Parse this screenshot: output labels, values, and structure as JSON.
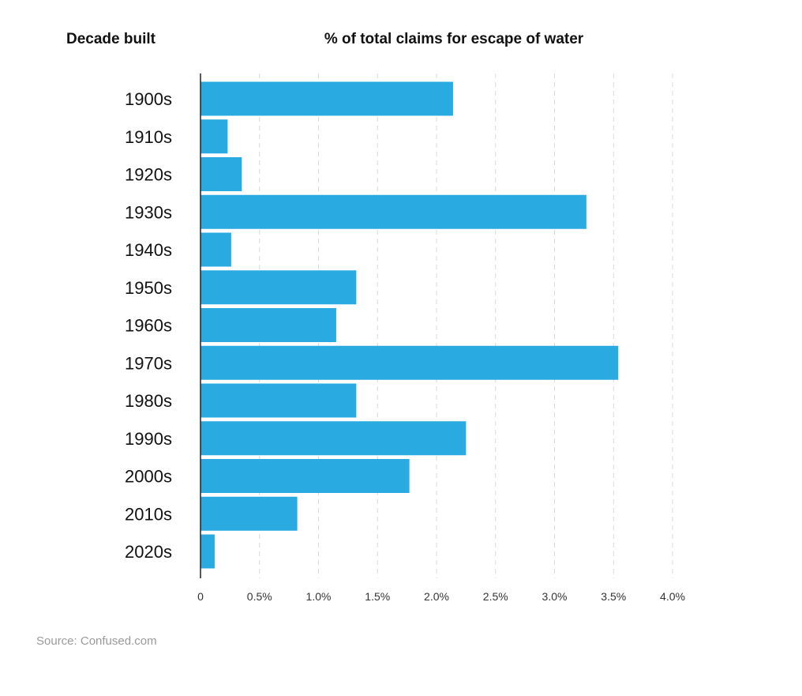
{
  "header": {
    "category_heading": "Decade built",
    "value_heading": "% of total claims for escape of water"
  },
  "source": "Source: Confused.com",
  "colors": {
    "bar": "#29abe2",
    "grid": "#d9d9d9",
    "axis": "#222222"
  },
  "chart_data": {
    "type": "bar",
    "orientation": "horizontal",
    "title": "% of total claims for escape of water",
    "ylabel": "Decade built",
    "xlabel": "",
    "categories": [
      "1900s",
      "1910s",
      "1920s",
      "1930s",
      "1940s",
      "1950s",
      "1960s",
      "1970s",
      "1980s",
      "1990s",
      "2000s",
      "2010s",
      "2020s"
    ],
    "values": [
      2.14,
      0.23,
      0.35,
      3.27,
      0.26,
      1.32,
      1.15,
      3.54,
      1.32,
      2.25,
      1.77,
      0.82,
      0.12
    ],
    "unit": "%",
    "xlim": [
      0,
      4.0
    ],
    "ticks": [
      0,
      0.5,
      1.0,
      1.5,
      2.0,
      2.5,
      3.0,
      3.5,
      4.0
    ],
    "tick_labels": [
      "0",
      "0.5%",
      "1.0%",
      "1.5%",
      "2.0%",
      "2.5%",
      "3.0%",
      "3.5%",
      "4.0%"
    ],
    "grid": true,
    "grid_style": "dashed",
    "legend": "none"
  }
}
